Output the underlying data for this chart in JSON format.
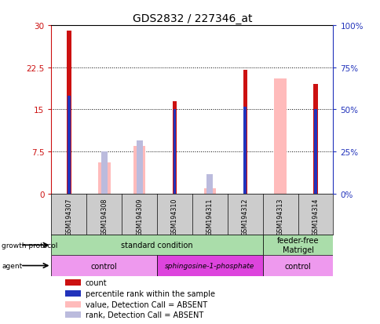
{
  "title": "GDS2832 / 227346_at",
  "samples": [
    "GSM194307",
    "GSM194308",
    "GSM194309",
    "GSM194310",
    "GSM194311",
    "GSM194312",
    "GSM194313",
    "GSM194314"
  ],
  "count_values": [
    29.0,
    null,
    null,
    16.5,
    null,
    22.0,
    null,
    19.5
  ],
  "percentile_values": [
    17.5,
    null,
    null,
    15.0,
    null,
    15.5,
    null,
    15.0
  ],
  "absent_value_bars": [
    null,
    5.5,
    8.5,
    null,
    1.0,
    null,
    20.5,
    null
  ],
  "absent_rank_bars": [
    null,
    7.5,
    9.5,
    null,
    3.5,
    null,
    null,
    null
  ],
  "ylim_left": [
    0,
    30
  ],
  "ylim_right": [
    0,
    100
  ],
  "yticks_left": [
    0,
    7.5,
    15,
    22.5,
    30
  ],
  "yticks_right": [
    0,
    25,
    50,
    75,
    100
  ],
  "ytick_labels_left": [
    "0",
    "7.5",
    "15",
    "22.5",
    "30"
  ],
  "ytick_labels_right": [
    "0%",
    "25%",
    "50%",
    "75%",
    "100%"
  ],
  "color_count": "#cc1111",
  "color_percentile": "#2233bb",
  "color_absent_value": "#ffbbbb",
  "color_absent_rank": "#bbbbdd",
  "growth_protocol_groups": [
    {
      "label": "standard condition",
      "start": 0,
      "end": 6
    },
    {
      "label": "feeder-free\nMatrigel",
      "start": 6,
      "end": 8
    }
  ],
  "agent_groups": [
    {
      "label": "control",
      "start": 0,
      "end": 3
    },
    {
      "label": "sphingosine-1-phosphate",
      "start": 3,
      "end": 6
    },
    {
      "label": "control",
      "start": 6,
      "end": 8
    }
  ],
  "growth_protocol_color": "#aaddaa",
  "agent_color_light": "#ee99ee",
  "agent_color_dark": "#dd44dd",
  "sample_bg_color": "#cccccc",
  "thin_bar_width": 0.12,
  "wide_bar_width": 0.35,
  "marker_bar_width": 0.08
}
